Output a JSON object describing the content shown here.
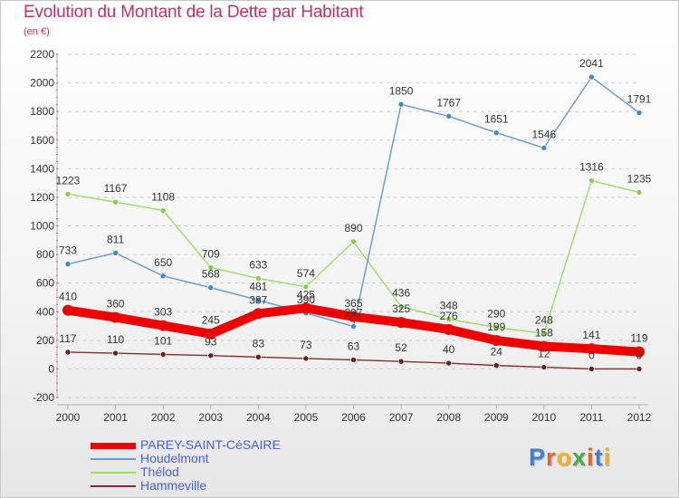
{
  "header": {
    "title": "Evolution du Montant de la Dette par Habitant",
    "subtitle": "(en €)"
  },
  "logo": {
    "text": "Proxiti"
  },
  "chart_data": {
    "type": "line",
    "title": "Evolution du Montant de la Dette par Habitant",
    "ylabel": "(en €)",
    "xlabel": "",
    "x": [
      "2000",
      "2001",
      "2002",
      "2003",
      "2004",
      "2005",
      "2006",
      "2007",
      "2008",
      "2009",
      "2010",
      "2011",
      "2012"
    ],
    "ylim": [
      -200,
      2200
    ],
    "yticks": [
      -200,
      0,
      200,
      400,
      600,
      800,
      1000,
      1200,
      1400,
      1600,
      1800,
      2000,
      2200
    ],
    "grid": "horizontal dashed",
    "legend_position": "bottom-left",
    "series": [
      {
        "name": "PAREY-SAINT-CéSAIRE",
        "color": "#ee0000",
        "marker": "#ee0000",
        "values": [
          410,
          360,
          303,
          245,
          387,
          425,
          365,
          325,
          276,
          199,
          158,
          141,
          119
        ]
      },
      {
        "name": "Houdelmont",
        "color": "#6699cc",
        "marker": "#3f86cc",
        "values": [
          733,
          811,
          650,
          568,
          481,
          390,
          297,
          1850,
          1767,
          1651,
          1546,
          2041,
          1791
        ]
      },
      {
        "name": "Thélod",
        "color": "#99dd66",
        "marker": "#88cc44",
        "values": [
          1223,
          1167,
          1108,
          709,
          633,
          574,
          890,
          436,
          348,
          290,
          248,
          1316,
          1235
        ]
      },
      {
        "name": "Hammeville",
        "color": "#7a3030",
        "marker": "#6b1e1e",
        "values": [
          117,
          110,
          101,
          93,
          83,
          73,
          63,
          52,
          40,
          24,
          12,
          0,
          0
        ]
      }
    ]
  }
}
